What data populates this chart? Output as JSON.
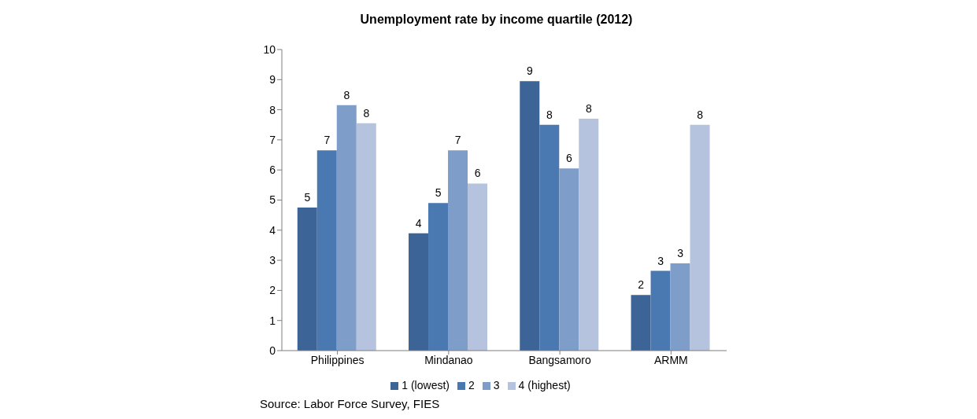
{
  "chart_data": {
    "type": "bar",
    "title": "Unemployment rate by income quartile (2012)",
    "categories": [
      "Philippines",
      "Mindanao",
      "Bangsamoro",
      "ARMM"
    ],
    "series": [
      {
        "name": "1 (lowest)",
        "color": "#3c6496",
        "values": [
          4.75,
          3.9,
          8.95,
          1.85
        ],
        "value_labels": [
          "5",
          "4",
          "9",
          "2"
        ]
      },
      {
        "name": "2",
        "color": "#4a78b0",
        "values": [
          6.65,
          4.9,
          7.5,
          2.65
        ],
        "value_labels": [
          "7",
          "5",
          "8",
          "3"
        ]
      },
      {
        "name": "3",
        "color": "#7f9dc9",
        "values": [
          8.15,
          6.65,
          6.05,
          2.9
        ],
        "value_labels": [
          "8",
          "7",
          "6",
          "3"
        ]
      },
      {
        "name": "4 (highest)",
        "color": "#b5c3de",
        "values": [
          7.55,
          5.55,
          7.7,
          7.5
        ],
        "value_labels": [
          "8",
          "6",
          "8",
          "8"
        ]
      }
    ],
    "ylim": [
      0,
      10
    ],
    "yticks": [
      0,
      1,
      2,
      3,
      4,
      5,
      6,
      7,
      8,
      9,
      10
    ],
    "grid": false,
    "legend": "bottom",
    "annotations": [
      "Source: Labor Force Survey, FIES"
    ]
  }
}
